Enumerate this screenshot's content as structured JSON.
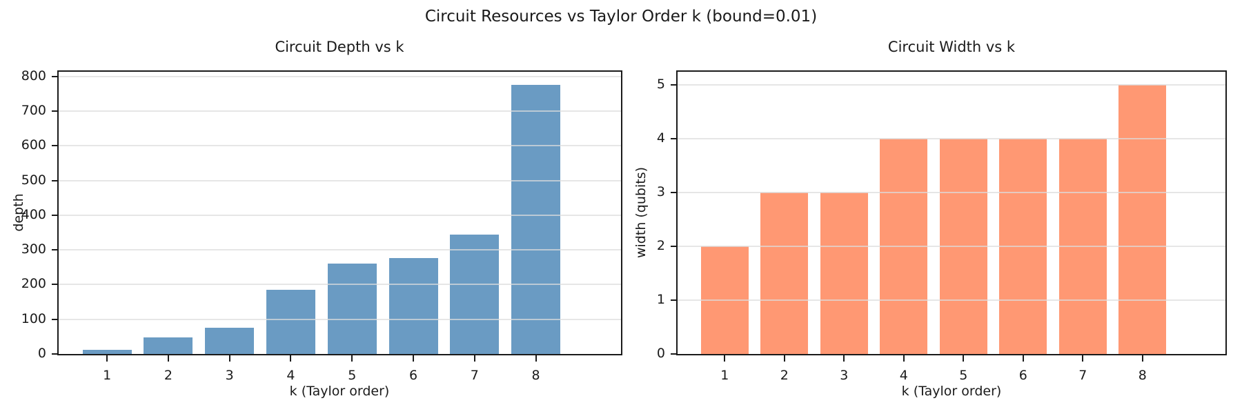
{
  "figure": {
    "suptitle": "Circuit Resources vs Taylor Order k (bound=0.01)"
  },
  "chart_data": [
    {
      "type": "bar",
      "title": "Circuit Depth vs k",
      "xlabel": "k (Taylor order)",
      "ylabel": "depth",
      "categories": [
        "1",
        "2",
        "3",
        "4",
        "5",
        "6",
        "7",
        "8"
      ],
      "values": [
        11,
        47,
        76,
        185,
        260,
        276,
        345,
        775
      ],
      "yticks": [
        0,
        100,
        200,
        300,
        400,
        500,
        600,
        700,
        800
      ],
      "ylim": [
        0,
        813.75
      ],
      "bar_color": "#6a9bc3",
      "grid": true,
      "legend": false
    },
    {
      "type": "bar",
      "title": "Circuit Width vs k",
      "xlabel": "k (Taylor order)",
      "ylabel": "width (qubits)",
      "categories": [
        "1",
        "2",
        "3",
        "4",
        "5",
        "6",
        "7",
        "8"
      ],
      "values": [
        2,
        3,
        3,
        4,
        4,
        4,
        4,
        5
      ],
      "yticks": [
        0,
        1,
        2,
        3,
        4,
        5
      ],
      "ylim": [
        0,
        5.25
      ],
      "bar_color": "#ff9873",
      "grid": true,
      "legend": false
    }
  ]
}
